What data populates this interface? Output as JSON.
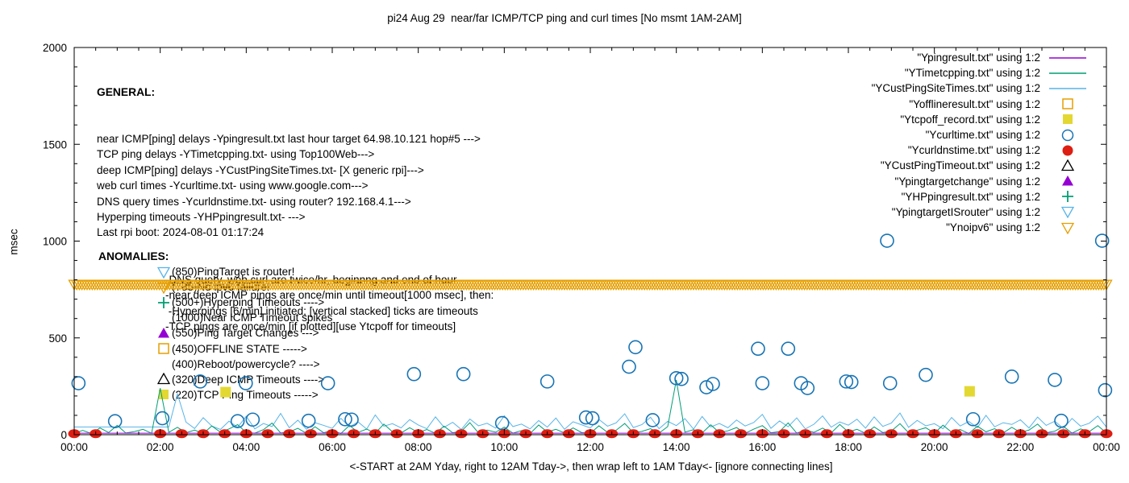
{
  "title": "pi24 Aug 29  near/far ICMP/TCP ping and curl times [No msmt 1AM-2AM]",
  "axes": {
    "ylabel": "msec",
    "xlabel": "<-START at 2AM Yday, right to 12AM Tday->, then wrap left to 1AM Tday<- [ignore connecting lines]",
    "y_ticks": [
      0,
      500,
      1000,
      1500,
      2000
    ],
    "x_tick_hours": [
      0,
      2,
      4,
      6,
      8,
      10,
      12,
      14,
      16,
      18,
      20,
      22,
      24
    ],
    "x_tick_labels": [
      "00:00",
      "02:00",
      "04:00",
      "06:00",
      "08:00",
      "10:00",
      "12:00",
      "14:00",
      "16:00",
      "18:00",
      "20:00",
      "22:00",
      "00:00"
    ],
    "ylim": [
      0,
      2000
    ],
    "xlim_hours": [
      0,
      24
    ]
  },
  "general": {
    "heading": "GENERAL:",
    "lines": [
      "near ICMP[ping] delays -Ypingresult.txt last hour target 64.98.10.121 hop#5 --->",
      "TCP ping delays -YTimetcpping.txt- using Top100Web--->",
      "deep ICMP[ping] delays -YCustPingSiteTimes.txt- [X generic rpi]--->",
      "web curl times -Ycurltime.txt- using www.google.com--->",
      "DNS query times -Ycurldnstime.txt- using router? 192.168.4.1--->",
      "Hyperping timeouts -YHPpingresult.txt- --->",
      "Last rpi boot: 2024-08-01 01:17:24"
    ],
    "notes": [
      "-DNS query, web curl are twice/hr, beginnng and end of hour",
      "-near,deep ICMP pings are once/min until timeout[1000 msec], then:",
      " -Hyperpings [6/min] initiated; [vertical stacked] ticks are timeouts",
      "-TCP pings are once/min [if plotted][use Ytcpoff for timeouts]"
    ]
  },
  "anomalies": {
    "heading": "ANOMALIES:",
    "items": [
      {
        "marker": "tri-down-open",
        "color": "#56b4e9",
        "text": "(850)PingTarget is router!"
      },
      {
        "marker": "tri-down-open",
        "color": "#e69f00",
        "text": "(785)No ipv6 failure!"
      },
      {
        "marker": "plus",
        "color": "#009e73",
        "text": "(500+)Hyperping Timeouts ---->"
      },
      {
        "marker": "none",
        "color": "#000000",
        "text": "(1000)Near ICMP Timeout spikes"
      },
      {
        "marker": "tri-up-filled",
        "color": "#9400d3",
        "text": "(550)Ping Target Changes --->"
      },
      {
        "marker": "square-open",
        "color": "#e69f00",
        "text": "(450)OFFLINE STATE ----->"
      },
      {
        "marker": "none",
        "color": "#000000",
        "text": "(400)Reboot/powercycle? ---->"
      },
      {
        "marker": "tri-up-open",
        "color": "#000000",
        "text": "(320)Deep ICMP Timeouts ---->"
      },
      {
        "marker": "square-filled",
        "color": "#e3d832",
        "text": "(220)TCP Ping Timeouts ----->"
      }
    ]
  },
  "legend": [
    {
      "label": "\"Ypingresult.txt\" using 1:2",
      "marker": "line",
      "color": "#9400d3"
    },
    {
      "label": "\"YTimetcpping.txt\" using 1:2",
      "marker": "line",
      "color": "#009e73"
    },
    {
      "label": "\"YCustPingSiteTimes.txt\" using 1:2",
      "marker": "line",
      "color": "#56b4e9"
    },
    {
      "label": "\"Yofflineresult.txt\" using 1:2",
      "marker": "square-open",
      "color": "#e69f00"
    },
    {
      "label": "\"Ytcpoff_record.txt\" using 1:2",
      "marker": "square-filled",
      "color": "#e3d832"
    },
    {
      "label": "\"Ycurltime.txt\" using 1:2",
      "marker": "circle-open",
      "color": "#1874b4"
    },
    {
      "label": "\"Ycurldnstime.txt\" using 1:2",
      "marker": "circle-filled",
      "color": "#dd1e12"
    },
    {
      "label": "\"YCustPingTimeout.txt\" using 1:2",
      "marker": "tri-up-open",
      "color": "#000000"
    },
    {
      "label": "\"Ypingtargetchange\" using 1:2",
      "marker": "tri-up-filled",
      "color": "#9400d3"
    },
    {
      "label": "\"YHPpingresult.txt\" using 1:2",
      "marker": "plus",
      "color": "#009e73"
    },
    {
      "label": "\"YpingtargetISrouter\" using 1:2",
      "marker": "tri-down-open",
      "color": "#56b4e9"
    },
    {
      "label": "\"Ynoipv6\" using 1:2",
      "marker": "tri-down-open",
      "color": "#e69f00"
    }
  ],
  "chart_data": {
    "type": "line+scatter",
    "x_unit": "hours_since_midnight",
    "xlim": [
      0,
      24
    ],
    "ylim": [
      0,
      2000
    ],
    "grid": false,
    "legend_position": "top-right-outside-frame-text",
    "series": [
      {
        "name": "YCustPingSiteTimes.txt",
        "kind": "line",
        "color": "#56b4e9",
        "sampled": {
          "x0": 0,
          "dx": 0.2,
          "y": [
            40,
            40,
            40,
            40,
            40,
            40,
            40,
            40,
            40,
            40,
            40,
            40,
            210,
            65,
            32,
            88,
            45,
            27,
            70,
            38,
            95,
            30,
            58,
            42,
            110,
            36,
            75,
            28,
            62,
            48,
            33,
            85,
            40,
            66,
            29,
            102,
            44,
            57,
            35,
            78,
            50,
            31,
            92,
            38,
            64,
            27,
            81,
            46,
            59,
            34,
            98,
            42,
            55,
            30,
            73,
            39,
            86,
            28,
            67,
            51,
            35,
            79,
            44,
            61,
            108,
            37,
            52,
            90,
            31,
            69,
            47,
            83,
            29,
            94,
            40,
            58,
            36,
            76,
            45,
            63,
            105,
            33,
            71,
            41,
            87,
            30,
            54,
            97,
            39,
            66,
            49,
            80,
            34,
            92,
            43,
            60,
            112,
            38,
            74,
            46,
            57,
            31,
            89,
            45,
            68,
            36,
            100,
            41,
            62,
            53,
            77,
            35,
            91,
            48,
            70,
            32,
            84,
            44,
            59,
            96,
            40
          ]
        }
      },
      {
        "name": "YTimetcpping.txt",
        "kind": "line",
        "color": "#009e73",
        "sampled": {
          "x0": 0,
          "dx": 0.2,
          "y": [
            8,
            22,
            6,
            35,
            11,
            48,
            9,
            16,
            28,
            7,
            240,
            12,
            38,
            10,
            24,
            6,
            45,
            13,
            30,
            52,
            11,
            8,
            26,
            60,
            9,
            14,
            33,
            7,
            41,
            10,
            22,
            6,
            48,
            12,
            29,
            8,
            55,
            15,
            9,
            36,
            11,
            27,
            7,
            44,
            10,
            18,
            62,
            9,
            24,
            13,
            39,
            8,
            21,
            6,
            50,
            14,
            28,
            9,
            35,
            11,
            7,
            46,
            12,
            23,
            58,
            10,
            17,
            31,
            8,
            42,
            283,
            13,
            26,
            9,
            51,
            11,
            20,
            37,
            7,
            29,
            47,
            10,
            16,
            61,
            8,
            25,
            12,
            34,
            9,
            53,
            14,
            28,
            7,
            40,
            11,
            19,
            57,
            10,
            23,
            36,
            8,
            49,
            13,
            27,
            6,
            44,
            15,
            31,
            9,
            38,
            12,
            24,
            55,
            10,
            18,
            43,
            8,
            30,
            16,
            47,
            9
          ]
        }
      },
      {
        "name": "Ypingresult.txt",
        "kind": "line",
        "color": "#9400d3",
        "sampled": {
          "x0": 0,
          "dx": 24,
          "y": [
            8,
            8
          ]
        }
      },
      {
        "name": "Yofflineresult.txt",
        "kind": "scatter",
        "marker": "square-open",
        "color": "#e69f00",
        "points": []
      },
      {
        "name": "Ytcpoff_record.txt",
        "kind": "scatter",
        "marker": "square-filled",
        "color": "#e3d832",
        "points": [
          [
            3.52,
            220
          ],
          [
            20.82,
            224
          ]
        ]
      },
      {
        "name": "Ycurltime.txt",
        "kind": "scatter",
        "marker": "circle-open",
        "color": "#1874b4",
        "points": [
          [
            0.1,
            266
          ],
          [
            0.95,
            70
          ],
          [
            2.05,
            85
          ],
          [
            2.93,
            275
          ],
          [
            3.8,
            70
          ],
          [
            3.99,
            266
          ],
          [
            4.15,
            78
          ],
          [
            5.45,
            72
          ],
          [
            5.9,
            266
          ],
          [
            6.3,
            80
          ],
          [
            6.45,
            78
          ],
          [
            7.9,
            313
          ],
          [
            9.05,
            313
          ],
          [
            9.95,
            60
          ],
          [
            11.0,
            275
          ],
          [
            11.9,
            89
          ],
          [
            12.05,
            85
          ],
          [
            12.9,
            351
          ],
          [
            13.05,
            452
          ],
          [
            13.45,
            75
          ],
          [
            14.0,
            292
          ],
          [
            14.12,
            288
          ],
          [
            14.7,
            245
          ],
          [
            14.85,
            262
          ],
          [
            15.9,
            444
          ],
          [
            16.0,
            266
          ],
          [
            16.6,
            444
          ],
          [
            16.9,
            266
          ],
          [
            17.05,
            241
          ],
          [
            17.95,
            275
          ],
          [
            18.07,
            272
          ],
          [
            18.9,
            1002
          ],
          [
            18.97,
            266
          ],
          [
            19.8,
            309
          ],
          [
            20.9,
            80
          ],
          [
            21.8,
            300
          ],
          [
            22.8,
            283
          ],
          [
            22.95,
            72
          ],
          [
            23.9,
            1002
          ],
          [
            23.97,
            230
          ]
        ]
      },
      {
        "name": "Ycurldnstime.txt",
        "kind": "scatter",
        "marker": "dot-wide",
        "color": "#dd1e12",
        "y_const": 5,
        "x": [
          0,
          0.5,
          2,
          2.5,
          3,
          3.5,
          4,
          4.5,
          5,
          5.5,
          6,
          6.5,
          7,
          7.5,
          8,
          8.5,
          9,
          9.5,
          10,
          10.5,
          11,
          11.5,
          12,
          12.5,
          13,
          13.5,
          14,
          14.5,
          15,
          15.5,
          16,
          16.5,
          17,
          17.5,
          18,
          18.5,
          19,
          19.5,
          20,
          20.5,
          21,
          21.5,
          22,
          22.5,
          23,
          23.5,
          24
        ]
      },
      {
        "name": "YCustPingTimeout.txt",
        "kind": "scatter",
        "marker": "tri-up-open",
        "color": "#000000",
        "points": []
      },
      {
        "name": "Ypingtargetchange",
        "kind": "scatter",
        "marker": "tri-up-filled",
        "color": "#9400d3",
        "points": []
      },
      {
        "name": "YHPpingresult.txt",
        "kind": "scatter",
        "marker": "plus",
        "color": "#009e73",
        "points": []
      },
      {
        "name": "YpingtargetISrouter",
        "kind": "scatter",
        "marker": "tri-down-open",
        "color": "#56b4e9",
        "points": []
      },
      {
        "name": "Ynoipv6",
        "kind": "band",
        "marker": "tri-down-open",
        "color": "#e69f00",
        "band": {
          "y": 777,
          "from": 0,
          "to": 24,
          "step": 0.06
        }
      }
    ]
  }
}
